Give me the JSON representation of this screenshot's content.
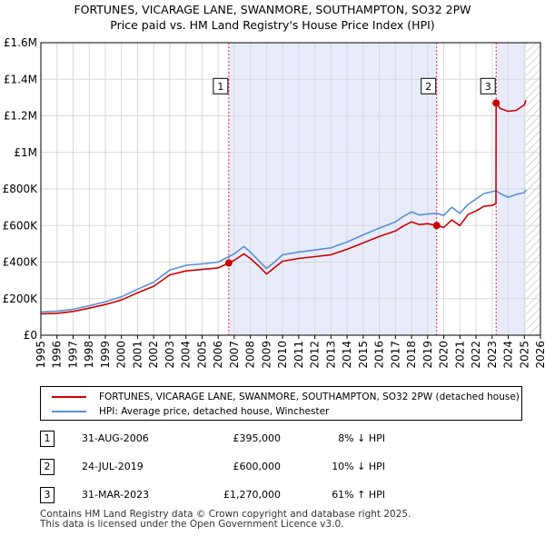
{
  "title": {
    "line1": "FORTUNES, VICARAGE LANE, SWANMORE, SOUTHAMPTON, SO32 2PW",
    "line2": "Price paid vs. HM Land Registry's House Price Index (HPI)"
  },
  "chart_data": {
    "type": "line",
    "xlim": [
      1995,
      2026
    ],
    "ylim": [
      0,
      1600000
    ],
    "y_ticks": [
      0,
      200000,
      400000,
      600000,
      800000,
      1000000,
      1200000,
      1400000,
      1600000
    ],
    "y_tick_labels": [
      "£0",
      "£200K",
      "£400K",
      "£600K",
      "£800K",
      "£1M",
      "£1.2M",
      "£1.4M",
      "£1.6M"
    ],
    "x_ticks": [
      1995,
      1996,
      1997,
      1998,
      1999,
      2000,
      2001,
      2002,
      2003,
      2004,
      2005,
      2006,
      2007,
      2008,
      2009,
      2010,
      2011,
      2012,
      2013,
      2014,
      2015,
      2016,
      2017,
      2018,
      2019,
      2020,
      2021,
      2022,
      2023,
      2024,
      2025,
      2026
    ],
    "x_tick_labels": [
      "1995",
      "1996",
      "1997",
      "1998",
      "1999",
      "2000",
      "2001",
      "2002",
      "2003",
      "2004",
      "2005",
      "2006",
      "2007",
      "2008",
      "2009",
      "2010",
      "2011",
      "2012",
      "2013",
      "2014",
      "2015",
      "2016",
      "2017",
      "2018",
      "2019",
      "2020",
      "2021",
      "2022",
      "2023",
      "2024",
      "2025",
      "2026"
    ],
    "grid": true,
    "shaded_ranges": [
      [
        2006.66,
        2019.56
      ],
      [
        2023.25,
        2025.1
      ]
    ],
    "hatched_range": [
      2025.1,
      2026
    ],
    "series": [
      {
        "name": "FORTUNES, VICARAGE LANE, SWANMORE, SOUTHAMPTON, SO32 2PW (detached house)",
        "color": "#cc0000",
        "x": [
          1995.0,
          1996.0,
          1997.0,
          1998.0,
          1999.0,
          2000.0,
          2001.0,
          2002.0,
          2003.0,
          2004.0,
          2005.0,
          2006.0,
          2006.66,
          2007.0,
          2007.6,
          2008.0,
          2008.5,
          2009.0,
          2009.5,
          2010.0,
          2011.0,
          2012.0,
          2013.0,
          2014.0,
          2015.0,
          2016.0,
          2017.0,
          2017.5,
          2018.0,
          2018.5,
          2019.0,
          2019.56,
          2020.0,
          2020.5,
          2021.0,
          2021.5,
          2022.0,
          2022.5,
          2023.0,
          2023.24,
          2023.25,
          2023.5,
          2024.0,
          2024.5,
          2025.0,
          2025.1
        ],
        "y": [
          117000,
          120000,
          130000,
          148000,
          168000,
          193000,
          232000,
          268000,
          330000,
          352000,
          360000,
          368000,
          395000,
          410000,
          445000,
          420000,
          380000,
          335000,
          370000,
          405000,
          420000,
          430000,
          440000,
          470000,
          505000,
          540000,
          570000,
          598000,
          620000,
          605000,
          610000,
          600000,
          590000,
          630000,
          600000,
          660000,
          680000,
          705000,
          710000,
          720000,
          1270000,
          1240000,
          1225000,
          1230000,
          1260000,
          1285000
        ]
      },
      {
        "name": "HPI: Average price, detached house, Winchester",
        "color": "#5b8fd4",
        "x": [
          1995.0,
          1996.0,
          1997.0,
          1998.0,
          1999.0,
          2000.0,
          2001.0,
          2002.0,
          2003.0,
          2004.0,
          2005.0,
          2006.0,
          2006.66,
          2007.0,
          2007.6,
          2008.0,
          2008.5,
          2009.0,
          2009.5,
          2010.0,
          2011.0,
          2012.0,
          2013.0,
          2014.0,
          2015.0,
          2016.0,
          2017.0,
          2017.5,
          2018.0,
          2018.5,
          2019.0,
          2019.56,
          2020.0,
          2020.5,
          2021.0,
          2021.5,
          2022.0,
          2022.5,
          2023.0,
          2023.25,
          2023.5,
          2024.0,
          2024.5,
          2025.0,
          2025.1
        ],
        "y": [
          127000,
          131000,
          142000,
          161000,
          183000,
          210000,
          252000,
          290000,
          357000,
          382000,
          390000,
          400000,
          430000,
          445000,
          485000,
          455000,
          410000,
          365000,
          400000,
          440000,
          455000,
          466000,
          478000,
          510000,
          549000,
          586000,
          620000,
          650000,
          675000,
          658000,
          663000,
          667000,
          655000,
          700000,
          667000,
          715000,
          745000,
          775000,
          785000,
          790000,
          775000,
          755000,
          770000,
          780000,
          795000
        ]
      }
    ],
    "sales": [
      {
        "label": "1",
        "date": "31-AUG-2006",
        "year": 2006.66,
        "price": 395000,
        "price_text": "£395,000",
        "hpi_text": "8% ↓ HPI"
      },
      {
        "label": "2",
        "date": "24-JUL-2019",
        "year": 2019.56,
        "price": 600000,
        "price_text": "£600,000",
        "hpi_text": "10% ↓ HPI"
      },
      {
        "label": "3",
        "date": "31-MAR-2023",
        "year": 2023.25,
        "price": 1270000,
        "price_text": "£1,270,000",
        "hpi_text": "61% ↑ HPI"
      }
    ]
  },
  "legend": {
    "property_label": "FORTUNES, VICARAGE LANE, SWANMORE, SOUTHAMPTON, SO32 2PW (detached house)",
    "hpi_label": "HPI: Average price, detached house, Winchester"
  },
  "footer": {
    "line1": "Contains HM Land Registry data © Crown copyright and database right 2025.",
    "line2": "This data is licensed under the Open Government Licence v3.0."
  }
}
